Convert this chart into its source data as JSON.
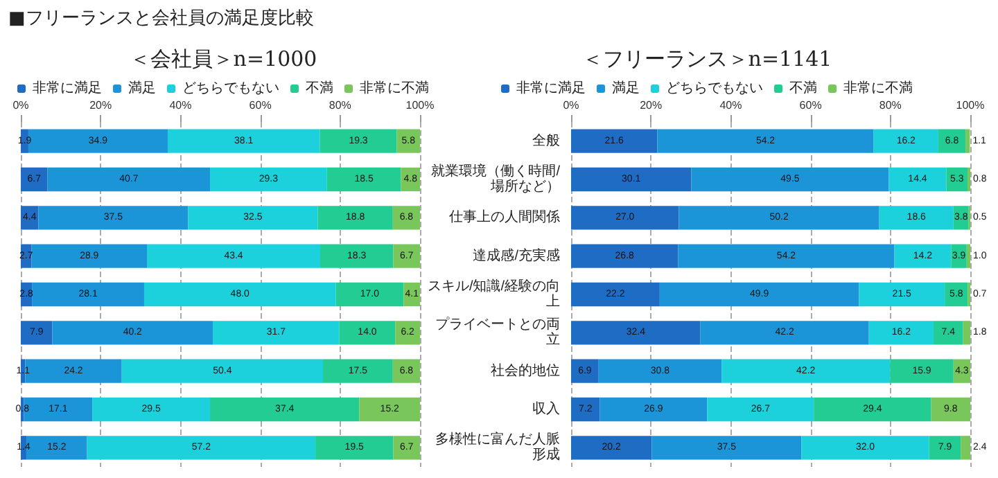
{
  "chart_data": [
    {
      "type": "bar",
      "title": "＜会社員＞n=1000",
      "annotations": [
        "■フリーランスと会社員の満足度比較"
      ],
      "orientation": "horizontal",
      "stacked": true,
      "legend": "top",
      "grid": "x",
      "tick_labels": "x",
      "xlim": [
        0,
        100
      ],
      "xticks": [
        {
          "value": 0,
          "label": "0%"
        },
        {
          "value": 20,
          "label": "20%"
        },
        {
          "value": 40,
          "label": "40%"
        },
        {
          "value": 60,
          "label": "60%"
        },
        {
          "value": 80,
          "label": "80%"
        },
        {
          "value": 100,
          "label": "100%"
        }
      ],
      "categories": [
        "全般",
        "就業環境（働く時間/場所など）",
        "仕事上の人間関係",
        "達成感/充実感",
        "スキル/知識/経験の向上",
        "プライベートとの両立",
        "社会的地位",
        "収入",
        "多様性に富んだ人脈形成"
      ],
      "series": [
        {
          "name": "非常に満足",
          "color": "#1f6cc4",
          "values": [
            1.9,
            6.7,
            4.4,
            2.7,
            2.8,
            7.9,
            1.1,
            0.8,
            1.4
          ],
          "value_labels": [
            "1.9",
            "6.7",
            "4.4",
            "2.7",
            "2.8",
            "7.9",
            "1.1",
            "0.8",
            "1.4"
          ]
        },
        {
          "name": "満足",
          "color": "#1b95d8",
          "values": [
            34.9,
            40.7,
            37.5,
            28.9,
            28.1,
            40.2,
            24.2,
            17.1,
            15.2
          ],
          "value_labels": [
            "34.9",
            "40.7",
            "37.5",
            "28.9",
            "28.1",
            "40.2",
            "24.2",
            "17.1",
            "15.2"
          ]
        },
        {
          "name": "どちらでもない",
          "color": "#1cd0dc",
          "values": [
            38.1,
            29.3,
            32.5,
            43.4,
            48.0,
            31.7,
            50.4,
            29.5,
            57.2
          ],
          "value_labels": [
            "38.1",
            "29.3",
            "32.5",
            "43.4",
            "48.0",
            "31.7",
            "50.4",
            "29.5",
            "57.2"
          ]
        },
        {
          "name": "不満",
          "color": "#22cc92",
          "values": [
            19.3,
            18.5,
            18.8,
            18.3,
            17.0,
            14.0,
            17.5,
            37.4,
            19.5
          ],
          "value_labels": [
            "19.3",
            "18.5",
            "18.8",
            "18.3",
            "17.0",
            "14.0",
            "17.5",
            "37.4",
            "19.5"
          ]
        },
        {
          "name": "非常に不満",
          "color": "#79c65a",
          "values": [
            5.8,
            4.8,
            6.8,
            6.7,
            4.1,
            6.2,
            6.8,
            15.2,
            6.7
          ],
          "value_labels": [
            "5.8",
            "4.8",
            "6.8",
            "6.7",
            "4.1",
            "6.2",
            "6.8",
            "15.2",
            "6.7"
          ]
        }
      ]
    },
    {
      "type": "bar",
      "title": "＜フリーランス＞n=1141",
      "orientation": "horizontal",
      "stacked": true,
      "legend": "top",
      "grid": "x",
      "xlim": [
        0,
        100
      ],
      "xticks": [
        {
          "value": 0,
          "label": "0%"
        },
        {
          "value": 20,
          "label": "20%"
        },
        {
          "value": 40,
          "label": "40%"
        },
        {
          "value": 60,
          "label": "60%"
        },
        {
          "value": 80,
          "label": "80%"
        },
        {
          "value": 100,
          "label": "100%"
        }
      ],
      "categories": [
        "全般",
        "就業環境（働く時間/場所など）",
        "仕事上の人間関係",
        "達成感/充実感",
        "スキル/知識/経験の向上",
        "プライベートとの両立",
        "社会的地位",
        "収入",
        "多様性に富んだ人脈形成"
      ],
      "series": [
        {
          "name": "非常に満足",
          "color": "#1f6cc4",
          "values": [
            21.6,
            30.1,
            27.0,
            26.8,
            22.2,
            32.4,
            6.9,
            7.2,
            20.2
          ],
          "value_labels": [
            "21.6",
            "30.1",
            "27.0",
            "26.8",
            "22.2",
            "32.4",
            "6.9",
            "7.2",
            "20.2"
          ]
        },
        {
          "name": "満足",
          "color": "#1b95d8",
          "values": [
            54.2,
            49.5,
            50.2,
            54.2,
            49.9,
            42.2,
            30.8,
            26.9,
            37.5
          ],
          "value_labels": [
            "54.2",
            "49.5",
            "50.2",
            "54.2",
            "49.9",
            "42.2",
            "30.8",
            "26.9",
            "37.5"
          ]
        },
        {
          "name": "どちらでもない",
          "color": "#1cd0dc",
          "values": [
            16.2,
            14.4,
            18.6,
            14.2,
            21.5,
            16.2,
            42.2,
            26.7,
            32.0
          ],
          "value_labels": [
            "16.2",
            "14.4",
            "18.6",
            "14.2",
            "21.5",
            "16.2",
            "42.2",
            "26.7",
            "32.0"
          ]
        },
        {
          "name": "不満",
          "color": "#22cc92",
          "values": [
            6.8,
            5.3,
            3.8,
            3.9,
            5.8,
            7.4,
            15.9,
            29.4,
            7.9
          ],
          "value_labels": [
            "6.8",
            "5.3",
            "3.8",
            "3.9",
            "5.8",
            "7.4",
            "15.9",
            "29.4",
            "7.9"
          ]
        },
        {
          "name": "非常に不満",
          "color": "#79c65a",
          "values": [
            1.1,
            0.8,
            0.5,
            1.0,
            0.7,
            1.8,
            4.3,
            9.8,
            2.4
          ],
          "value_labels": [
            "1.1",
            "0.8",
            "0.5",
            "1.0",
            "0.7",
            "1.8",
            "4.3",
            "9.8",
            "2.4"
          ]
        }
      ]
    }
  ]
}
